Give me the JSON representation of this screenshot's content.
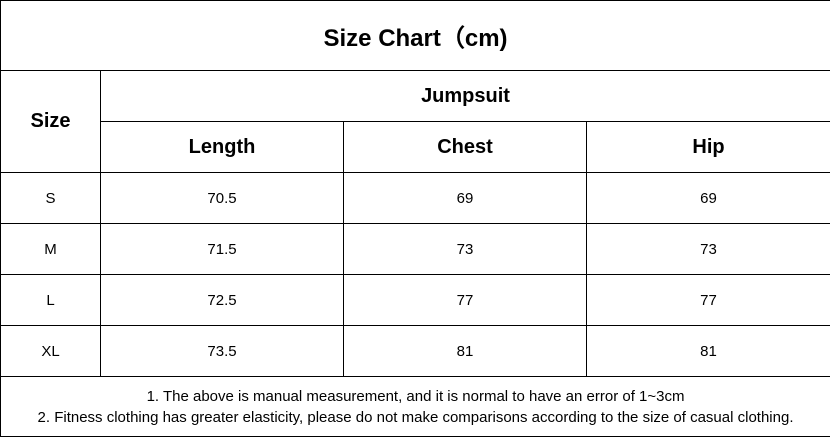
{
  "title": "Size Chart（cm)",
  "table": {
    "size_header": "Size",
    "group_header": "Jumpsuit",
    "columns": [
      "Length",
      "Chest",
      "Hip"
    ],
    "rows": [
      [
        "S",
        70.5,
        69,
        69
      ],
      [
        "M",
        71.5,
        73,
        73
      ],
      [
        "L",
        72.5,
        77,
        77
      ],
      [
        "XL",
        73.5,
        81,
        81
      ]
    ]
  },
  "notes": [
    "1. The above is manual measurement, and it is normal to have an error of 1~3cm",
    "2. Fitness clothing has greater elasticity, please do not make comparisons according to the size of casual clothing."
  ]
}
